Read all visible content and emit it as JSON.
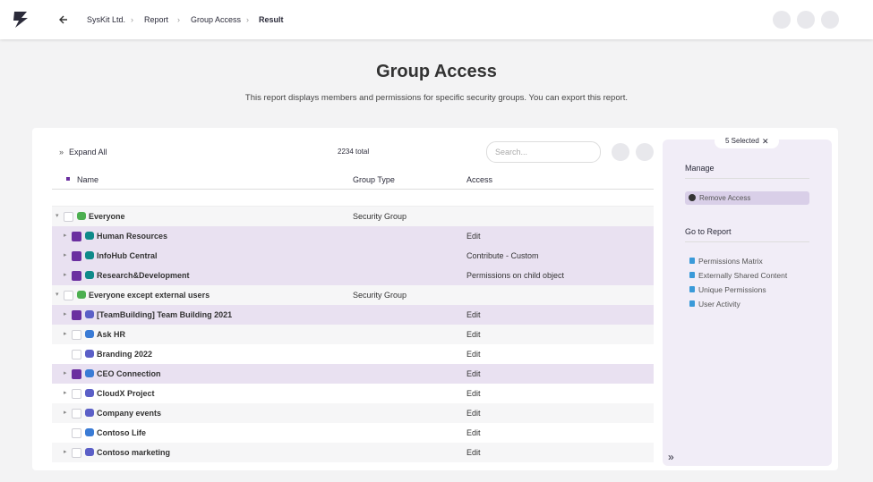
{
  "header": {
    "breadcrumbs": [
      "SysKit Ltd.",
      "Report",
      "Group Access",
      "Result"
    ]
  },
  "page": {
    "title": "Group Access",
    "description": "This report displays members and permissions for specific security groups. You can export this report."
  },
  "toolbar": {
    "expand_all": "Expand All",
    "total": "2234 total",
    "search_placeholder": "Search..."
  },
  "table": {
    "columns": [
      "Name",
      "Group Type",
      "Access"
    ],
    "rows": [
      {
        "name": "Everyone",
        "group_type": "Security Group",
        "access": null,
        "level": 0,
        "icon": "group",
        "expandable": true,
        "checked": false
      },
      {
        "name": "Human Resources",
        "group_type": null,
        "access": "Edit",
        "level": 1,
        "icon": "sharepoint",
        "expandable": true,
        "checked": true
      },
      {
        "name": "InfoHub Central",
        "group_type": null,
        "access": "Contribute - Custom",
        "level": 1,
        "icon": "sharepoint",
        "expandable": true,
        "checked": true
      },
      {
        "name": "Research&Development",
        "group_type": null,
        "access": "Permissions on child object",
        "level": 1,
        "icon": "sharepoint",
        "expandable": true,
        "checked": true
      },
      {
        "name": "Everyone except external users",
        "group_type": "Security Group",
        "access": null,
        "level": 0,
        "icon": "group",
        "expandable": true,
        "checked": false
      },
      {
        "name": "[TeamBuilding] Team Building 2021",
        "group_type": null,
        "access": "Edit",
        "level": 1,
        "icon": "teams",
        "expandable": true,
        "checked": true
      },
      {
        "name": "Ask HR",
        "group_type": null,
        "access": "Edit",
        "level": 1,
        "icon": "people",
        "expandable": true,
        "checked": false
      },
      {
        "name": "Branding 2022",
        "group_type": null,
        "access": "Edit",
        "level": 1,
        "icon": "teams",
        "expandable": false,
        "checked": false
      },
      {
        "name": "CEO Connection",
        "group_type": null,
        "access": "Edit",
        "level": 1,
        "icon": "people",
        "expandable": true,
        "checked": true
      },
      {
        "name": "CloudX Project",
        "group_type": null,
        "access": "Edit",
        "level": 1,
        "icon": "teams",
        "expandable": true,
        "checked": false
      },
      {
        "name": "Company events",
        "group_type": null,
        "access": "Edit",
        "level": 1,
        "icon": "teams",
        "expandable": true,
        "checked": false
      },
      {
        "name": "Contoso Life",
        "group_type": null,
        "access": "Edit",
        "level": 1,
        "icon": "people",
        "expandable": false,
        "checked": false
      },
      {
        "name": "Contoso marketing",
        "group_type": null,
        "access": "Edit",
        "level": 1,
        "icon": "teams",
        "expandable": true,
        "checked": false
      }
    ]
  },
  "side_panel": {
    "selected": "5 Selected",
    "manage_heading": "Manage",
    "remove_access": "Remove Access",
    "go_to_heading": "Go to Report",
    "links": [
      "Permissions Matrix",
      "Externally Shared Content",
      "Unique Permissions",
      "User Activity"
    ]
  }
}
